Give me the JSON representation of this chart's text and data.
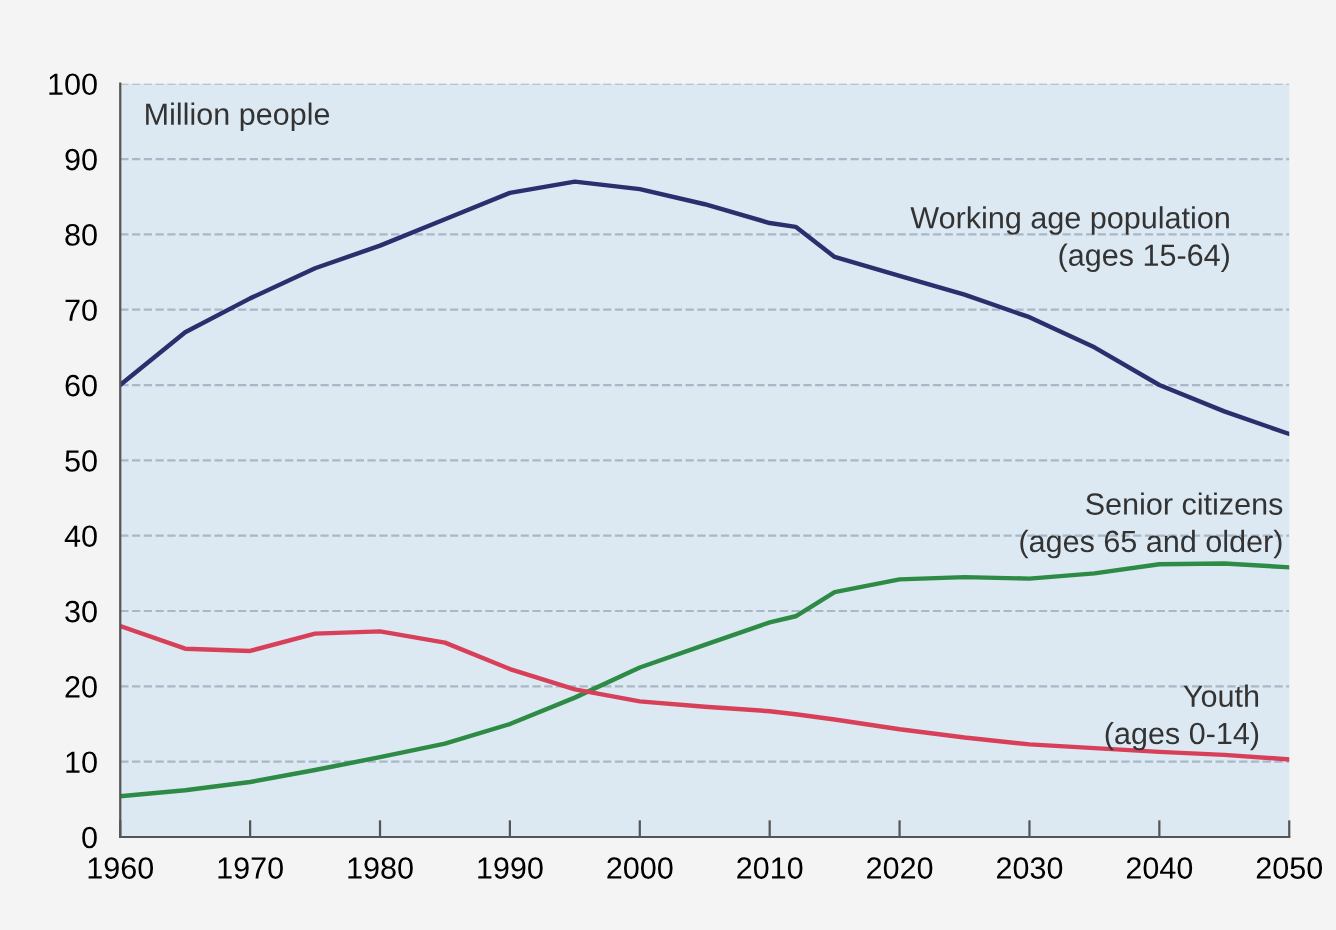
{
  "chart_data": {
    "type": "line",
    "annotations": [
      "Million people"
    ],
    "x": [
      1960,
      1965,
      1970,
      1975,
      1980,
      1985,
      1990,
      1995,
      2000,
      2005,
      2010,
      2012,
      2015,
      2020,
      2025,
      2030,
      2035,
      2040,
      2045,
      2050
    ],
    "series": [
      {
        "name": "Working age population\n(ages 15-64)",
        "color": "#2b2f6e",
        "values": [
          60,
          67,
          71.5,
          75.5,
          78.5,
          82,
          85.5,
          87,
          86,
          84,
          81.5,
          81,
          77,
          74.5,
          72,
          69,
          65,
          60,
          56.5,
          53.5
        ]
      },
      {
        "name": "Senior citizens\n(ages 65 and older)",
        "color": "#2e8b45",
        "values": [
          5.4,
          6.2,
          7.3,
          8.9,
          10.6,
          12.4,
          15,
          18.5,
          22.5,
          25.5,
          28.5,
          29.3,
          32.5,
          34.2,
          34.5,
          34.3,
          35,
          36.2,
          36.3,
          35.8
        ]
      },
      {
        "name": "Youth\n(ages 0-14)",
        "color": "#d8405a",
        "values": [
          28,
          25,
          24.7,
          27,
          27.3,
          25.8,
          22.3,
          19.6,
          18,
          17.3,
          16.7,
          16.3,
          15.6,
          14.3,
          13.2,
          12.3,
          11.8,
          11.3,
          10.9,
          10.3
        ]
      }
    ],
    "xlim": [
      1960,
      2050
    ],
    "xticks": [
      1960,
      1970,
      1980,
      1990,
      2000,
      2010,
      2020,
      2030,
      2040,
      2050
    ],
    "ylim": [
      0,
      100
    ],
    "yticks": [
      0,
      10,
      20,
      30,
      40,
      50,
      60,
      70,
      80,
      90,
      100
    ],
    "grid": "y",
    "legend": false,
    "line_style": "solid",
    "marker": "none"
  }
}
